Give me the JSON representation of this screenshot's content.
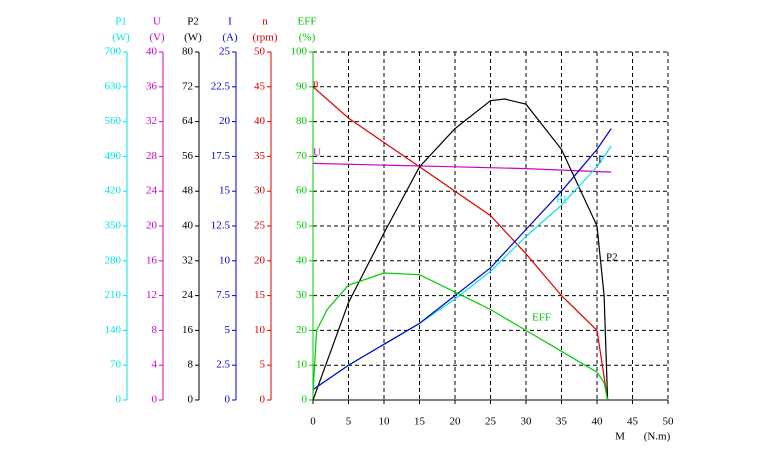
{
  "chart_data": {
    "type": "line",
    "xlim": [
      0,
      50
    ],
    "xticks": [
      0,
      5,
      10,
      15,
      20,
      25,
      30,
      35,
      40,
      45,
      50
    ],
    "xlabel": "M",
    "xunit": "(N.m)",
    "grid": true,
    "axes": [
      {
        "name": "P1",
        "unit": "(W)",
        "color": "#00e5e5",
        "ylim": [
          0,
          700
        ],
        "yticks": [
          0,
          70,
          140,
          210,
          280,
          350,
          420,
          490,
          560,
          630,
          700
        ]
      },
      {
        "name": "U",
        "unit": "(V)",
        "color": "#cc00cc",
        "ylim": [
          0,
          40
        ],
        "yticks": [
          0,
          4,
          8,
          12,
          16,
          20,
          24,
          28,
          32,
          36,
          40
        ]
      },
      {
        "name": "P2",
        "unit": "(W)",
        "color": "#000000",
        "ylim": [
          0,
          80
        ],
        "yticks": [
          0,
          8,
          16,
          24,
          32,
          40,
          48,
          56,
          64,
          72,
          80
        ]
      },
      {
        "name": "I",
        "unit": "(A)",
        "color": "#0000cc",
        "ylim": [
          0,
          25
        ],
        "yticks": [
          0,
          2.5,
          5,
          7.5,
          10,
          12.5,
          15,
          17.5,
          20,
          22.5,
          25
        ]
      },
      {
        "name": "n",
        "unit": "(rpm)",
        "color": "#dd0000",
        "ylim": [
          0,
          50
        ],
        "yticks": [
          0,
          5,
          10,
          15,
          20,
          25,
          30,
          35,
          40,
          45,
          50
        ]
      },
      {
        "name": "EFF",
        "unit": "(%)",
        "color": "#00cc00",
        "ylim": [
          0,
          100
        ],
        "yticks": [
          0,
          10,
          20,
          30,
          40,
          50,
          60,
          70,
          80,
          90,
          100
        ]
      }
    ],
    "series": [
      {
        "name": "n",
        "axis": 4,
        "color": "#dd0000",
        "x": [
          0,
          5,
          10,
          15,
          20,
          25,
          30,
          35,
          40,
          41.5
        ],
        "values": [
          45,
          40.5,
          37,
          33.5,
          30,
          26.5,
          21,
          15,
          10,
          0
        ]
      },
      {
        "name": "U",
        "axis": 1,
        "color": "#cc00cc",
        "x": [
          0,
          10,
          20,
          30,
          42
        ],
        "values": [
          27.2,
          27,
          26.8,
          26.6,
          26.2
        ]
      },
      {
        "name": "P2",
        "axis": 2,
        "color": "#000000",
        "x": [
          0,
          5,
          10,
          15,
          20,
          25,
          27,
          30,
          35,
          40,
          41,
          41.5
        ],
        "values": [
          0,
          22.4,
          38.4,
          53.6,
          62.4,
          68.8,
          69.2,
          68,
          57.6,
          40,
          24,
          0
        ]
      },
      {
        "name": "P1",
        "axis": 0,
        "color": "#00e5e5",
        "x": [
          0,
          5,
          10,
          15,
          20,
          25,
          30,
          35,
          40,
          42
        ],
        "values": [
          21,
          70,
          112,
          154,
          203,
          259,
          329,
          392,
          469,
          511
        ]
      },
      {
        "name": "I",
        "axis": 3,
        "color": "#0000cc",
        "x": [
          0,
          5,
          10,
          15,
          20,
          25,
          30,
          35,
          40,
          42
        ],
        "values": [
          0.75,
          2.5,
          4,
          5.5,
          7.5,
          9.5,
          12.25,
          15,
          18,
          19.5
        ]
      },
      {
        "name": "EFF",
        "axis": 5,
        "color": "#00cc00",
        "x": [
          0,
          0.5,
          2,
          5,
          10,
          15,
          20,
          25,
          30,
          35,
          40,
          41,
          41.5
        ],
        "values": [
          2,
          20,
          26,
          33,
          36.5,
          36,
          31,
          26,
          20,
          14,
          8,
          5,
          0
        ]
      }
    ]
  }
}
